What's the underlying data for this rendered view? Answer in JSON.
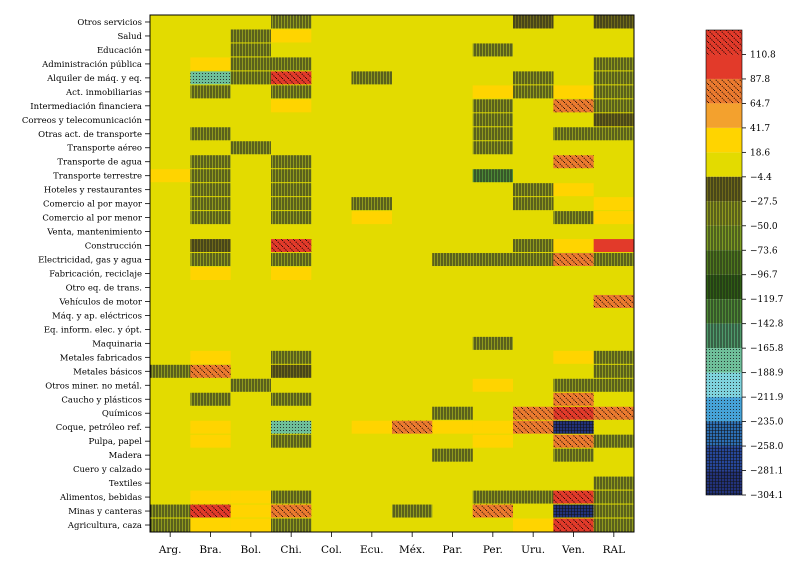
{
  "chart_data": {
    "type": "heatmap",
    "x_categories": [
      "Arg.",
      "Bra.",
      "Bol.",
      "Chi.",
      "Col.",
      "Ecu.",
      "Méx.",
      "Par.",
      "Per.",
      "Uru.",
      "Ven.",
      "RAL"
    ],
    "y_categories": [
      "Otros servicios",
      "Salud",
      "Educación",
      "Administración pública",
      "Alquiler de máq. y eq.",
      "Act. inmobiliarias",
      "Intermediación financiera",
      "Correos y telecomunicación",
      "Otras act. de transporte",
      "Transporte aéreo",
      "Transporte de agua",
      "Transporte terrestre",
      "Hoteles y restaurantes",
      "Comercio al por mayor",
      "Comercio al por menor",
      "Venta, mantenimiento",
      "Construcción",
      "Electricidad, gas y agua",
      "Fabricación, reciclaje",
      "Otro eq. de trans.",
      "Vehículos de motor",
      "Máq. y ap. eléctricos",
      "Eq. inform. elec. y ópt.",
      "Maquinaria",
      "Metales fabricados",
      "Metales básicos",
      "Otros miner. no metál.",
      "Caucho y plásticos",
      "Químicos",
      "Coque, petróleo ref.",
      "Pulpa, papel",
      "Madera",
      "Cuero y calzado",
      "Textiles",
      "Alimentos, bebidas",
      "Minas y canteras",
      "Agricultura, caza"
    ],
    "colorbar_ticks": [
      "110.8",
      "87.8",
      "64.7",
      "41.7",
      "18.6",
      "−4.4",
      "−27.5",
      "−50.0",
      "−73.6",
      "−96.7",
      "−119.7",
      "−142.8",
      "−165.8",
      "−188.9",
      "−211.9",
      "−235.0",
      "−258.0",
      "−281.1",
      "−304.1"
    ],
    "colorbar_bins": [
      {
        "min": 99.3,
        "max": 122.3,
        "color": "#e23a2a",
        "pattern": "diag"
      },
      {
        "min": 76.3,
        "max": 99.3,
        "color": "#e23a2a",
        "pattern": "none"
      },
      {
        "min": 53.2,
        "max": 76.3,
        "color": "#eb7a2f",
        "pattern": "diag"
      },
      {
        "min": 30.2,
        "max": 53.2,
        "color": "#f3a12e",
        "pattern": "none"
      },
      {
        "min": 7.1,
        "max": 30.2,
        "color": "#ffd400",
        "pattern": "none"
      },
      {
        "min": -15.9,
        "max": 7.1,
        "color": "#e3db00",
        "pattern": "none"
      },
      {
        "min": -39.0,
        "max": -15.9,
        "color": "#6f6a1a",
        "pattern": "vert"
      },
      {
        "min": -62.0,
        "max": -39.0,
        "color": "#8f9a1e",
        "pattern": "vert"
      },
      {
        "min": -85.1,
        "max": -62.0,
        "color": "#7c9d23",
        "pattern": "vert"
      },
      {
        "min": -108.1,
        "max": -85.1,
        "color": "#4f7a1e",
        "pattern": "vert"
      },
      {
        "min": -131.2,
        "max": -108.1,
        "color": "#2f5e14",
        "pattern": "vert"
      },
      {
        "min": -154.3,
        "max": -131.2,
        "color": "#4e8a36",
        "pattern": "vert"
      },
      {
        "min": -177.3,
        "max": -154.3,
        "color": "#4f9a6a",
        "pattern": "vert"
      },
      {
        "min": -200.4,
        "max": -177.3,
        "color": "#6fbf9a",
        "pattern": "dots"
      },
      {
        "min": -223.4,
        "max": -200.4,
        "color": "#7fd3dd",
        "pattern": "dots"
      },
      {
        "min": -246.5,
        "max": -223.4,
        "color": "#46a3d8",
        "pattern": "dots"
      },
      {
        "min": -269.5,
        "max": -246.5,
        "color": "#2c6fb5",
        "pattern": "grid"
      },
      {
        "min": -292.6,
        "max": -269.5,
        "color": "#26479a",
        "pattern": "grid"
      },
      {
        "min": -315.6,
        "max": -292.6,
        "color": "#22327a",
        "pattern": "grid"
      }
    ],
    "default_value": -4.4,
    "cells": [
      {
        "row": 0,
        "col": 3,
        "value": -50.0
      },
      {
        "row": 0,
        "col": 9,
        "value": -27.5
      },
      {
        "row": 0,
        "col": 11,
        "value": -27.5
      },
      {
        "row": 1,
        "col": 2,
        "value": -50.0
      },
      {
        "row": 1,
        "col": 3,
        "value": 18.6
      },
      {
        "row": 2,
        "col": 2,
        "value": -50.0
      },
      {
        "row": 2,
        "col": 8,
        "value": -50.0
      },
      {
        "row": 3,
        "col": 1,
        "value": 18.6
      },
      {
        "row": 3,
        "col": 2,
        "value": -50.0
      },
      {
        "row": 3,
        "col": 3,
        "value": -50.0
      },
      {
        "row": 3,
        "col": 11,
        "value": -50.0
      },
      {
        "row": 4,
        "col": 1,
        "value": -188.9
      },
      {
        "row": 4,
        "col": 2,
        "value": -50.0
      },
      {
        "row": 4,
        "col": 3,
        "value": 110.8
      },
      {
        "row": 4,
        "col": 5,
        "value": -50.0
      },
      {
        "row": 4,
        "col": 9,
        "value": -50.0
      },
      {
        "row": 4,
        "col": 11,
        "value": -50.0
      },
      {
        "row": 5,
        "col": 1,
        "value": -50.0
      },
      {
        "row": 5,
        "col": 3,
        "value": -50.0
      },
      {
        "row": 5,
        "col": 8,
        "value": 18.6
      },
      {
        "row": 5,
        "col": 9,
        "value": -50.0
      },
      {
        "row": 5,
        "col": 10,
        "value": 18.6
      },
      {
        "row": 5,
        "col": 11,
        "value": -50.0
      },
      {
        "row": 6,
        "col": 3,
        "value": 18.6
      },
      {
        "row": 6,
        "col": 8,
        "value": -50.0
      },
      {
        "row": 6,
        "col": 10,
        "value": 64.7
      },
      {
        "row": 6,
        "col": 11,
        "value": -50.0
      },
      {
        "row": 7,
        "col": 8,
        "value": -50.0
      },
      {
        "row": 7,
        "col": 11,
        "value": -27.5
      },
      {
        "row": 8,
        "col": 1,
        "value": -50.0
      },
      {
        "row": 8,
        "col": 8,
        "value": -50.0
      },
      {
        "row": 8,
        "col": 10,
        "value": -50.0
      },
      {
        "row": 8,
        "col": 11,
        "value": -50.0
      },
      {
        "row": 9,
        "col": 2,
        "value": -50.0
      },
      {
        "row": 9,
        "col": 8,
        "value": -50.0
      },
      {
        "row": 10,
        "col": 1,
        "value": -50.0
      },
      {
        "row": 10,
        "col": 3,
        "value": -50.0
      },
      {
        "row": 10,
        "col": 10,
        "value": 64.7
      },
      {
        "row": 11,
        "col": 0,
        "value": 18.6
      },
      {
        "row": 11,
        "col": 1,
        "value": -50.0
      },
      {
        "row": 11,
        "col": 3,
        "value": -50.0
      },
      {
        "row": 11,
        "col": 8,
        "value": -142.8
      },
      {
        "row": 12,
        "col": 1,
        "value": -50.0
      },
      {
        "row": 12,
        "col": 3,
        "value": -50.0
      },
      {
        "row": 12,
        "col": 9,
        "value": -50.0
      },
      {
        "row": 12,
        "col": 10,
        "value": 18.6
      },
      {
        "row": 13,
        "col": 1,
        "value": -50.0
      },
      {
        "row": 13,
        "col": 3,
        "value": -50.0
      },
      {
        "row": 13,
        "col": 5,
        "value": -50.0
      },
      {
        "row": 13,
        "col": 9,
        "value": -50.0
      },
      {
        "row": 13,
        "col": 11,
        "value": 18.6
      },
      {
        "row": 14,
        "col": 1,
        "value": -50.0
      },
      {
        "row": 14,
        "col": 3,
        "value": -50.0
      },
      {
        "row": 14,
        "col": 5,
        "value": 18.6
      },
      {
        "row": 14,
        "col": 10,
        "value": -50.0
      },
      {
        "row": 14,
        "col": 11,
        "value": 18.6
      },
      {
        "row": 16,
        "col": 1,
        "value": -27.5
      },
      {
        "row": 16,
        "col": 3,
        "value": 110.8
      },
      {
        "row": 16,
        "col": 9,
        "value": -50.0
      },
      {
        "row": 16,
        "col": 10,
        "value": 18.6
      },
      {
        "row": 16,
        "col": 11,
        "value": 87.8
      },
      {
        "row": 17,
        "col": 1,
        "value": -50.0
      },
      {
        "row": 17,
        "col": 3,
        "value": -50.0
      },
      {
        "row": 17,
        "col": 7,
        "value": -50.0
      },
      {
        "row": 17,
        "col": 8,
        "value": -50.0
      },
      {
        "row": 17,
        "col": 9,
        "value": -50.0
      },
      {
        "row": 17,
        "col": 10,
        "value": 64.7
      },
      {
        "row": 17,
        "col": 11,
        "value": -50.0
      },
      {
        "row": 18,
        "col": 1,
        "value": 18.6
      },
      {
        "row": 18,
        "col": 3,
        "value": 18.6
      },
      {
        "row": 20,
        "col": 11,
        "value": 64.7
      },
      {
        "row": 23,
        "col": 8,
        "value": -50.0
      },
      {
        "row": 24,
        "col": 1,
        "value": 18.6
      },
      {
        "row": 24,
        "col": 3,
        "value": -50.0
      },
      {
        "row": 24,
        "col": 10,
        "value": 18.6
      },
      {
        "row": 24,
        "col": 11,
        "value": -50.0
      },
      {
        "row": 25,
        "col": 0,
        "value": -50.0
      },
      {
        "row": 25,
        "col": 1,
        "value": 64.7
      },
      {
        "row": 25,
        "col": 3,
        "value": -27.5
      },
      {
        "row": 25,
        "col": 11,
        "value": -50.0
      },
      {
        "row": 26,
        "col": 2,
        "value": -50.0
      },
      {
        "row": 26,
        "col": 8,
        "value": 18.6
      },
      {
        "row": 26,
        "col": 10,
        "value": -50.0
      },
      {
        "row": 26,
        "col": 11,
        "value": -50.0
      },
      {
        "row": 27,
        "col": 1,
        "value": -50.0
      },
      {
        "row": 27,
        "col": 3,
        "value": -50.0
      },
      {
        "row": 27,
        "col": 10,
        "value": 64.7
      },
      {
        "row": 28,
        "col": 7,
        "value": -50.0
      },
      {
        "row": 28,
        "col": 9,
        "value": 64.7
      },
      {
        "row": 28,
        "col": 10,
        "value": 110.8
      },
      {
        "row": 28,
        "col": 11,
        "value": 64.7
      },
      {
        "row": 29,
        "col": 1,
        "value": 18.6
      },
      {
        "row": 29,
        "col": 3,
        "value": -188.9
      },
      {
        "row": 29,
        "col": 5,
        "value": 18.6
      },
      {
        "row": 29,
        "col": 6,
        "value": 64.7
      },
      {
        "row": 29,
        "col": 7,
        "value": 18.6
      },
      {
        "row": 29,
        "col": 8,
        "value": 18.6
      },
      {
        "row": 29,
        "col": 9,
        "value": 64.7
      },
      {
        "row": 29,
        "col": 10,
        "value": -304.1
      },
      {
        "row": 30,
        "col": 1,
        "value": 18.6
      },
      {
        "row": 30,
        "col": 3,
        "value": -50.0
      },
      {
        "row": 30,
        "col": 8,
        "value": 18.6
      },
      {
        "row": 30,
        "col": 10,
        "value": 64.7
      },
      {
        "row": 30,
        "col": 11,
        "value": -50.0
      },
      {
        "row": 31,
        "col": 7,
        "value": -50.0
      },
      {
        "row": 31,
        "col": 10,
        "value": -50.0
      },
      {
        "row": 33,
        "col": 11,
        "value": -50.0
      },
      {
        "row": 34,
        "col": 1,
        "value": 18.6
      },
      {
        "row": 34,
        "col": 2,
        "value": 18.6
      },
      {
        "row": 34,
        "col": 3,
        "value": -50.0
      },
      {
        "row": 34,
        "col": 8,
        "value": -50.0
      },
      {
        "row": 34,
        "col": 9,
        "value": -50.0
      },
      {
        "row": 34,
        "col": 10,
        "value": 110.8
      },
      {
        "row": 34,
        "col": 11,
        "value": -50.0
      },
      {
        "row": 35,
        "col": 0,
        "value": -50.0
      },
      {
        "row": 35,
        "col": 1,
        "value": 110.8
      },
      {
        "row": 35,
        "col": 2,
        "value": 18.6
      },
      {
        "row": 35,
        "col": 3,
        "value": 64.7
      },
      {
        "row": 35,
        "col": 6,
        "value": -50.0
      },
      {
        "row": 35,
        "col": 8,
        "value": 64.7
      },
      {
        "row": 35,
        "col": 10,
        "value": -304.1
      },
      {
        "row": 35,
        "col": 11,
        "value": -50.0
      },
      {
        "row": 36,
        "col": 0,
        "value": -50.0
      },
      {
        "row": 36,
        "col": 1,
        "value": 18.6
      },
      {
        "row": 36,
        "col": 2,
        "value": 18.6
      },
      {
        "row": 36,
        "col": 3,
        "value": -50.0
      },
      {
        "row": 36,
        "col": 9,
        "value": 18.6
      },
      {
        "row": 36,
        "col": 10,
        "value": 110.8
      },
      {
        "row": 36,
        "col": 11,
        "value": -50.0
      }
    ]
  }
}
